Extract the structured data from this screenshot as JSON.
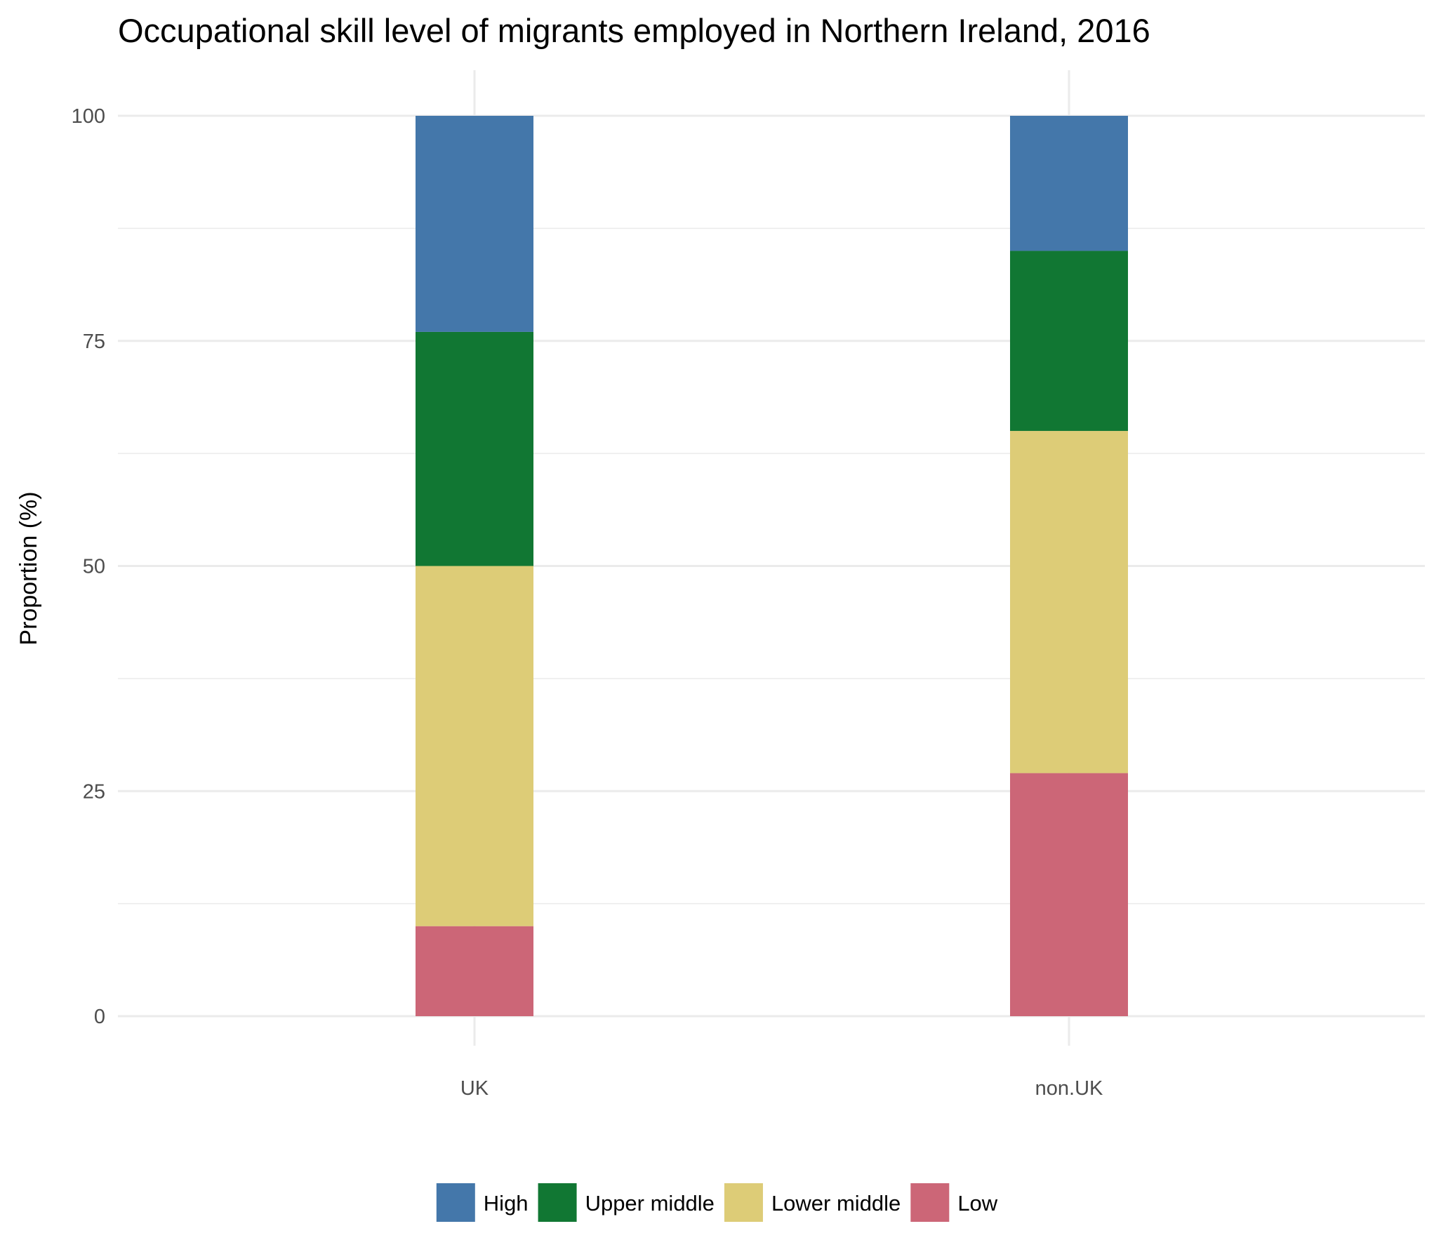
{
  "chart_data": {
    "type": "bar",
    "stacked": true,
    "title": "Occupational skill level of migrants employed in Northern Ireland, 2016",
    "xlabel": "",
    "ylabel": "Proportion (%)",
    "categories": [
      "UK",
      "non.UK"
    ],
    "ylim": [
      0,
      100
    ],
    "yticks": [
      0,
      25,
      50,
      75,
      100
    ],
    "grid": true,
    "legend_position": "bottom",
    "series": [
      {
        "name": "Low",
        "color": "#CC6677",
        "values": [
          10,
          27
        ]
      },
      {
        "name": "Lower middle",
        "color": "#DDCC77",
        "values": [
          40,
          38
        ]
      },
      {
        "name": "Upper middle",
        "color": "#117733",
        "values": [
          26,
          20
        ]
      },
      {
        "name": "High",
        "color": "#4477AA",
        "values": [
          24,
          15
        ]
      }
    ],
    "legend_order": [
      "High",
      "Upper middle",
      "Lower middle",
      "Low"
    ]
  }
}
